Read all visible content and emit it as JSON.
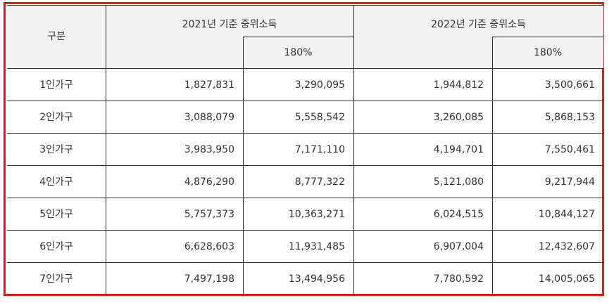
{
  "header": {
    "category": "구분",
    "year2021": "2021년 기준 중위소득",
    "year2022": "2022년 기준 중위소득",
    "pct_2021": "180%",
    "pct_2022": "180%"
  },
  "rows": [
    {
      "label": "1인가구",
      "c2021": "1,827,831",
      "c2021_180": "3,290,095",
      "c2022": "1,944,812",
      "c2022_180": "3,500,661"
    },
    {
      "label": "2인가구",
      "c2021": "3,088,079",
      "c2021_180": "5,558,542",
      "c2022": "3,260,085",
      "c2022_180": "5,868,153"
    },
    {
      "label": "3인가구",
      "c2021": "3,983,950",
      "c2021_180": "7,171,110",
      "c2022": "4,194,701",
      "c2022_180": "7,550,461"
    },
    {
      "label": "4인가구",
      "c2021": "4,876,290",
      "c2021_180": "8,777,322",
      "c2022": "5,121,080",
      "c2022_180": "9,217,944"
    },
    {
      "label": "5인가구",
      "c2021": "5,757,373",
      "c2021_180": "10,363,271",
      "c2022": "6,024,515",
      "c2022_180": "10,844,127"
    },
    {
      "label": "6인가구",
      "c2021": "6,628,603",
      "c2021_180": "11,931,485",
      "c2022": "6,907,004",
      "c2022_180": "12,432,607"
    },
    {
      "label": "7인가구",
      "c2021": "7,497,198",
      "c2021_180": "13,494,956",
      "c2022": "7,780,592",
      "c2022_180": "14,005,065"
    }
  ],
  "colors": {
    "highlight_border": "#e21d1d",
    "header_bg": "#f2f2f2",
    "grid_line": "#2b2b2b"
  }
}
